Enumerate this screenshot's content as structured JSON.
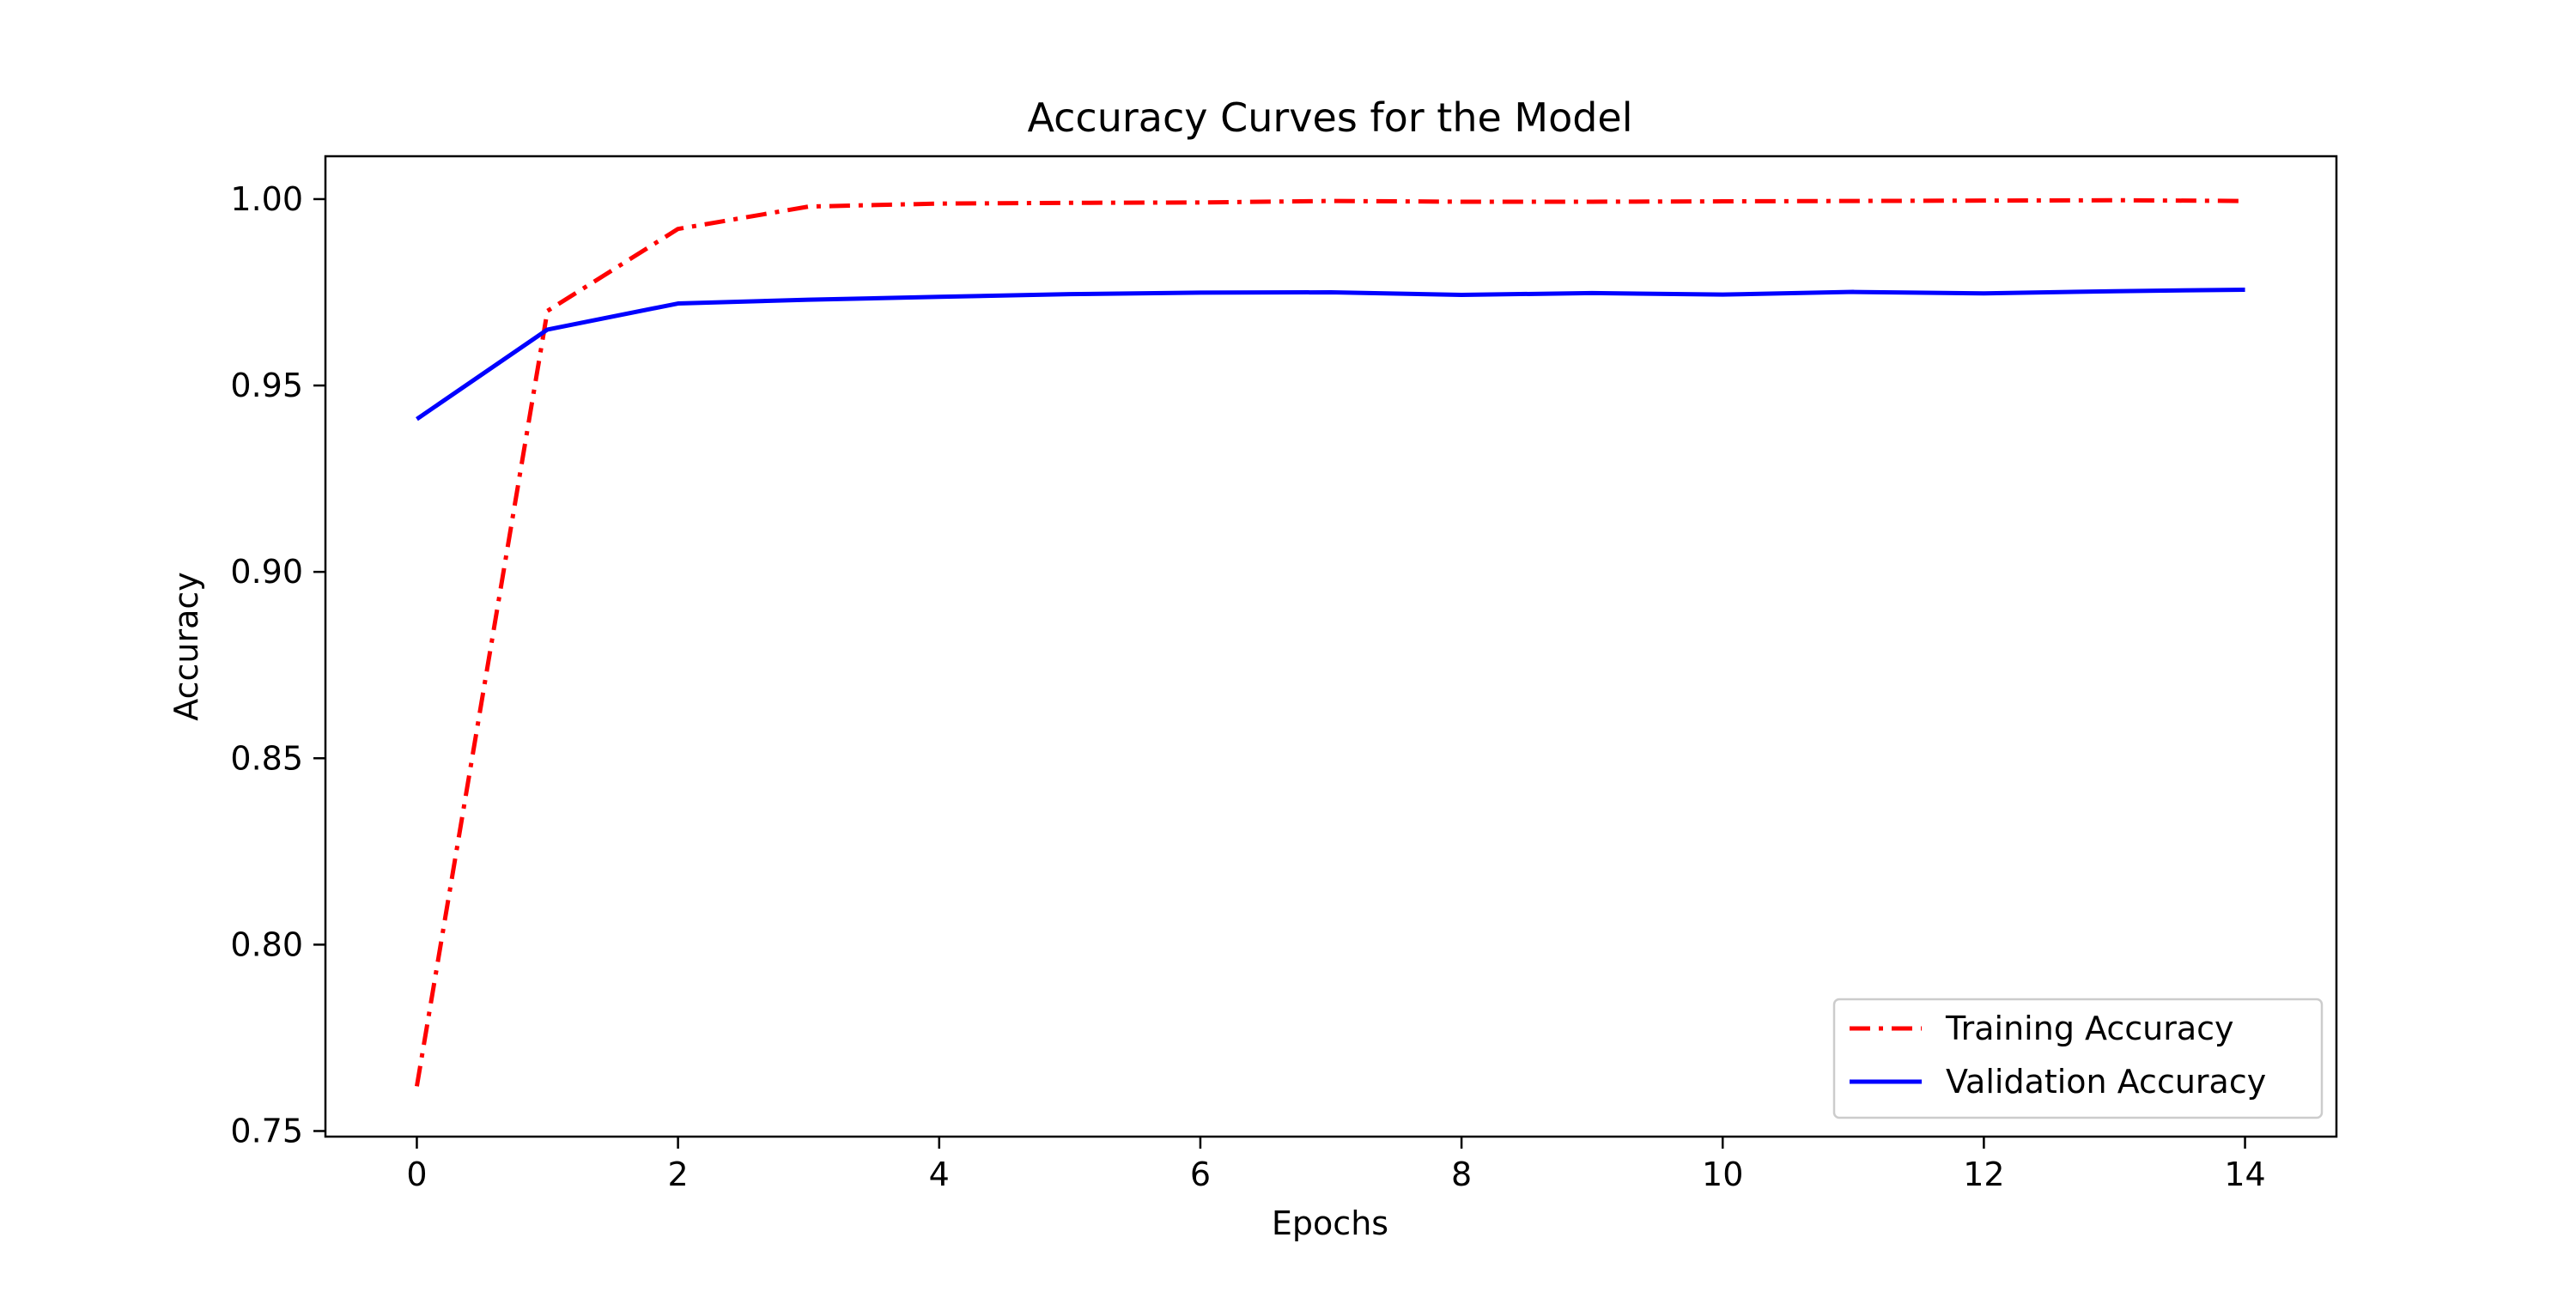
{
  "chart_data": {
    "type": "line",
    "title": "Accuracy Curves for the Model",
    "xlabel": "Epochs",
    "ylabel": "Accuracy",
    "xlim": [
      -0.7,
      14.7
    ],
    "ylim": [
      0.7485,
      1.0115
    ],
    "xticks": [
      0,
      2,
      4,
      6,
      8,
      10,
      12,
      14
    ],
    "yticks": [
      0.75,
      0.8,
      0.85,
      0.9,
      0.95,
      1.0
    ],
    "ytick_labels": [
      "0.75",
      "0.80",
      "0.85",
      "0.90",
      "0.95",
      "1.00"
    ],
    "grid": false,
    "legend_position": "lower-right",
    "x": [
      0,
      1,
      2,
      3,
      4,
      5,
      6,
      7,
      8,
      9,
      10,
      11,
      12,
      13,
      14
    ],
    "series": [
      {
        "name": "Training Accuracy",
        "color": "#ff0000",
        "line_style": "dash-dot",
        "values": [
          0.762,
          0.97,
          0.992,
          0.998,
          0.9988,
          0.999,
          0.9991,
          0.9995,
          0.9993,
          0.9993,
          0.9994,
          0.9995,
          0.9996,
          0.9997,
          0.9995
        ]
      },
      {
        "name": "Validation Accuracy",
        "color": "#0000ff",
        "line_style": "solid",
        "values": [
          0.941,
          0.965,
          0.972,
          0.973,
          0.9738,
          0.9745,
          0.9749,
          0.975,
          0.9743,
          0.9748,
          0.9744,
          0.9751,
          0.9747,
          0.9753,
          0.9757
        ]
      }
    ]
  }
}
